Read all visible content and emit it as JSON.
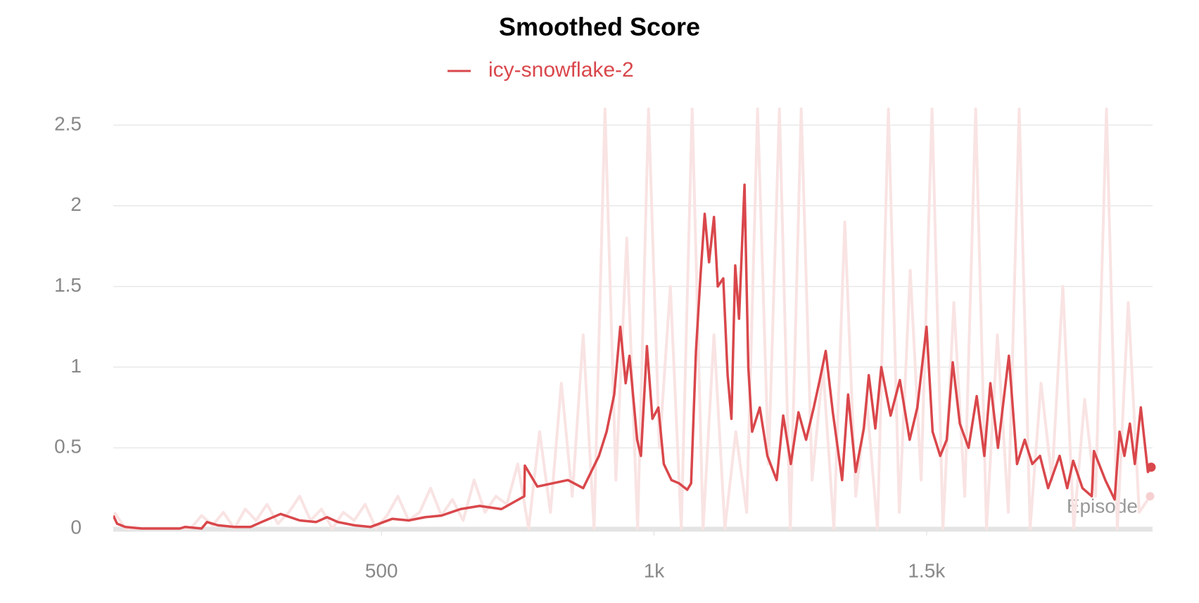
{
  "chart_data": {
    "type": "line",
    "title": "Smoothed Score",
    "xlabel": "Episode",
    "xlim": [
      8,
      1912
    ],
    "ylim": [
      0,
      2.6
    ],
    "xticks": [
      500,
      {
        "value": 1000,
        "label": "1k"
      },
      {
        "value": 1500,
        "label": "1.5k"
      }
    ],
    "yticks": [
      0,
      0.5,
      1,
      1.5,
      2,
      2.5
    ],
    "grid": true,
    "legend": "top",
    "series": [
      {
        "name": "icy-snowflake-2",
        "color": "#d9474b",
        "x": [
          8,
          15,
          30,
          60,
          130,
          140,
          170,
          180,
          200,
          230,
          260,
          280,
          315,
          350,
          380,
          400,
          420,
          450,
          480,
          504,
          520,
          550,
          580,
          610,
          645,
          680,
          720,
          762,
          763,
          786,
          842,
          870,
          899,
          913,
          927,
          938,
          948,
          955,
          969,
          976,
          987,
          997,
          1008,
          1018,
          1032,
          1046,
          1061,
          1068,
          1077,
          1085,
          1093,
          1101,
          1110,
          1117,
          1127,
          1135,
          1142,
          1149,
          1156,
          1166,
          1173,
          1180,
          1194,
          1208,
          1225,
          1237,
          1251,
          1265,
          1279,
          1293,
          1304,
          1315,
          1328,
          1345,
          1356,
          1370,
          1385,
          1394,
          1406,
          1417,
          1434,
          1451,
          1469,
          1483,
          1500,
          1511,
          1525,
          1537,
          1548,
          1561,
          1577,
          1592,
          1606,
          1617,
          1631,
          1651,
          1666,
          1680,
          1694,
          1708,
          1723,
          1744,
          1758,
          1769,
          1786,
          1803,
          1807,
          1828,
          1845,
          1854,
          1863,
          1873,
          1882,
          1893,
          1906,
          1912
        ],
        "values": [
          0.08,
          0.03,
          0.01,
          0,
          0,
          0.01,
          0,
          0.04,
          0.02,
          0.01,
          0.01,
          0.04,
          0.09,
          0.05,
          0.04,
          0.07,
          0.04,
          0.02,
          0.01,
          0.04,
          0.06,
          0.05,
          0.07,
          0.08,
          0.12,
          0.14,
          0.12,
          0.2,
          0.39,
          0.26,
          0.3,
          0.25,
          0.45,
          0.6,
          0.83,
          1.25,
          0.9,
          1.07,
          0.55,
          0.45,
          1.13,
          0.68,
          0.75,
          0.4,
          0.3,
          0.28,
          0.24,
          0.28,
          1.1,
          1.55,
          1.95,
          1.65,
          1.93,
          1.5,
          1.55,
          0.95,
          0.68,
          1.63,
          1.3,
          2.13,
          1.0,
          0.6,
          0.75,
          0.45,
          0.3,
          0.7,
          0.4,
          0.72,
          0.55,
          0.75,
          0.92,
          1.1,
          0.72,
          0.3,
          0.83,
          0.35,
          0.62,
          0.95,
          0.62,
          1.0,
          0.7,
          0.92,
          0.55,
          0.75,
          1.25,
          0.6,
          0.45,
          0.55,
          1.03,
          0.65,
          0.5,
          0.82,
          0.45,
          0.9,
          0.5,
          1.07,
          0.4,
          0.55,
          0.4,
          0.45,
          0.25,
          0.45,
          0.25,
          0.42,
          0.25,
          0.2,
          0.48,
          0.3,
          0.18,
          0.6,
          0.45,
          0.65,
          0.4,
          0.75,
          0.35,
          0.38
        ]
      },
      {
        "color": "#f9e3e3",
        "x": [
          10,
          30,
          50,
          70,
          90,
          110,
          130,
          150,
          170,
          190,
          210,
          230,
          250,
          270,
          290,
          310,
          330,
          350,
          370,
          390,
          410,
          430,
          450,
          470,
          490,
          510,
          530,
          550,
          570,
          590,
          610,
          630,
          650,
          670,
          690,
          710,
          730,
          750,
          770,
          790,
          810,
          830,
          850,
          870,
          890,
          910,
          930,
          950,
          970,
          990,
          1010,
          1030,
          1050,
          1070,
          1090,
          1110,
          1130,
          1150,
          1170,
          1190,
          1210,
          1230,
          1250,
          1270,
          1290,
          1310,
          1330,
          1350,
          1370,
          1390,
          1410,
          1430,
          1450,
          1470,
          1490,
          1510,
          1530,
          1550,
          1570,
          1590,
          1610,
          1630,
          1650,
          1670,
          1690,
          1710,
          1730,
          1750,
          1770,
          1790,
          1810,
          1830,
          1850,
          1870,
          1890,
          1910
        ],
        "values": [
          0.1,
          0,
          0,
          0,
          0,
          0,
          0,
          0,
          0.08,
          0.02,
          0.1,
          0,
          0.12,
          0.05,
          0.15,
          0.03,
          0.1,
          0.2,
          0.05,
          0.12,
          0,
          0.1,
          0.05,
          0.15,
          0,
          0.08,
          0.2,
          0.05,
          0.1,
          0.25,
          0.08,
          0.18,
          0.05,
          0.3,
          0.1,
          0.2,
          0.15,
          0.4,
          0,
          0.6,
          0.1,
          0.9,
          0.2,
          1.2,
          0,
          2.6,
          0.3,
          1.8,
          0,
          2.6,
          0.5,
          1.5,
          0,
          2.6,
          0,
          1.2,
          0,
          0.6,
          0.1,
          2.6,
          0.4,
          2.6,
          0,
          2.6,
          0.3,
          1.0,
          0,
          1.9,
          0.2,
          0.8,
          0,
          2.6,
          0.1,
          1.6,
          0.3,
          2.6,
          0,
          1.4,
          0.2,
          2.6,
          0,
          1.2,
          0.1,
          2.6,
          0,
          0.9,
          0.3,
          1.5,
          0,
          0.8,
          0.2,
          2.6,
          0,
          1.4,
          0.1,
          0.2
        ]
      }
    ]
  }
}
